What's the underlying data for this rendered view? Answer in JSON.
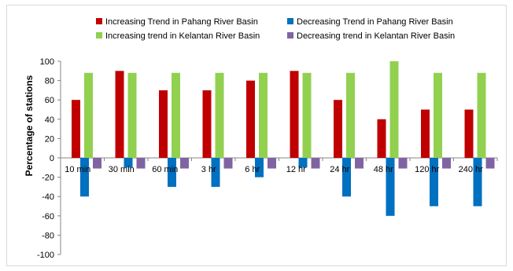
{
  "chart_data": {
    "type": "bar",
    "ylabel": "Percentage of stations",
    "xlabel": "",
    "title": "",
    "ylim": [
      -100,
      100
    ],
    "yticks": [
      100,
      80,
      60,
      40,
      20,
      0,
      -20,
      -40,
      -60,
      -80,
      -100
    ],
    "legend_placement": "top",
    "categories": [
      "10 min",
      "30 min",
      "60 min",
      "3 hr",
      "6 hr",
      "12 hr",
      "24 hr",
      "48 hr",
      "120 hr",
      "240 hr"
    ],
    "series": [
      {
        "name": "Increasing Trend in Pahang River Basin",
        "color": "#c00000",
        "values": [
          60,
          90,
          70,
          70,
          80,
          90,
          60,
          40,
          50,
          50
        ]
      },
      {
        "name": "Decreasing Trend in Pahang  River Basin",
        "color": "#0070c0",
        "values": [
          -40,
          -10,
          -30,
          -30,
          -20,
          -10,
          -40,
          -60,
          -50,
          -50
        ]
      },
      {
        "name": "Increasing trend in Kelantan River Basin",
        "color": "#92d050",
        "values": [
          88,
          88,
          88,
          88,
          88,
          88,
          88,
          100,
          88,
          88
        ]
      },
      {
        "name": "Decreasing trend in Kelantan River Basin",
        "color": "#8064a2",
        "values": [
          -11,
          -11,
          -11,
          -11,
          -11,
          -11,
          -11,
          -11,
          -11,
          -11
        ]
      }
    ]
  }
}
